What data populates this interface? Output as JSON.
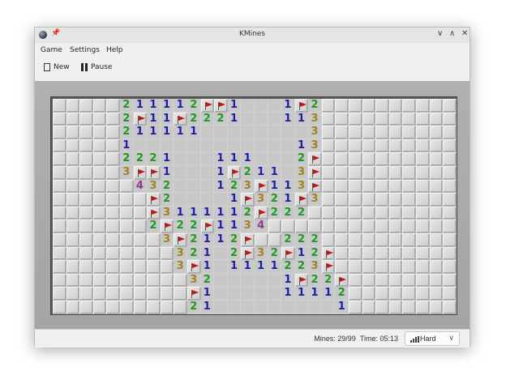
{
  "window": {
    "title": "KMines"
  },
  "menu": [
    "Game",
    "Settings",
    "Help"
  ],
  "toolbar": {
    "new_label": "New",
    "pause_label": "Pause"
  },
  "status": {
    "mines": "Mines: 29/99",
    "time": "Time: 05:13",
    "difficulty": "Hard"
  },
  "board": {
    "columns": 30,
    "rows_count": 16,
    "legend": {
      "#": "closed",
      ".": "open-empty",
      "F": "flag"
    },
    "number_colors": {
      "1": "#1c1ca8",
      "2": "#1e9a1e",
      "3": "#a2821e",
      "4": "#8c3a8c"
    },
    "rows": [
      "#####211112FF1...1F2##########",
      "#####2F11F2221...113##########",
      "#####211111........3##########",
      "#####1............13##########",
      "#####2221...111...2F##########",
      "#####3FF1...1F211.3F##########",
      "######432...123F113F##########",
      "#######F2....1F321F3##########",
      "#######F3111112F222###########",
      "#######2F22F1134##############",
      "########3F2112F##222##########",
      "#########321.2F32F12F#########",
      "#########3F1.1111223F#########",
      "##########32.....1F22F########",
      "##########F1.....11112########",
      "##########21.........1########"
    ]
  }
}
